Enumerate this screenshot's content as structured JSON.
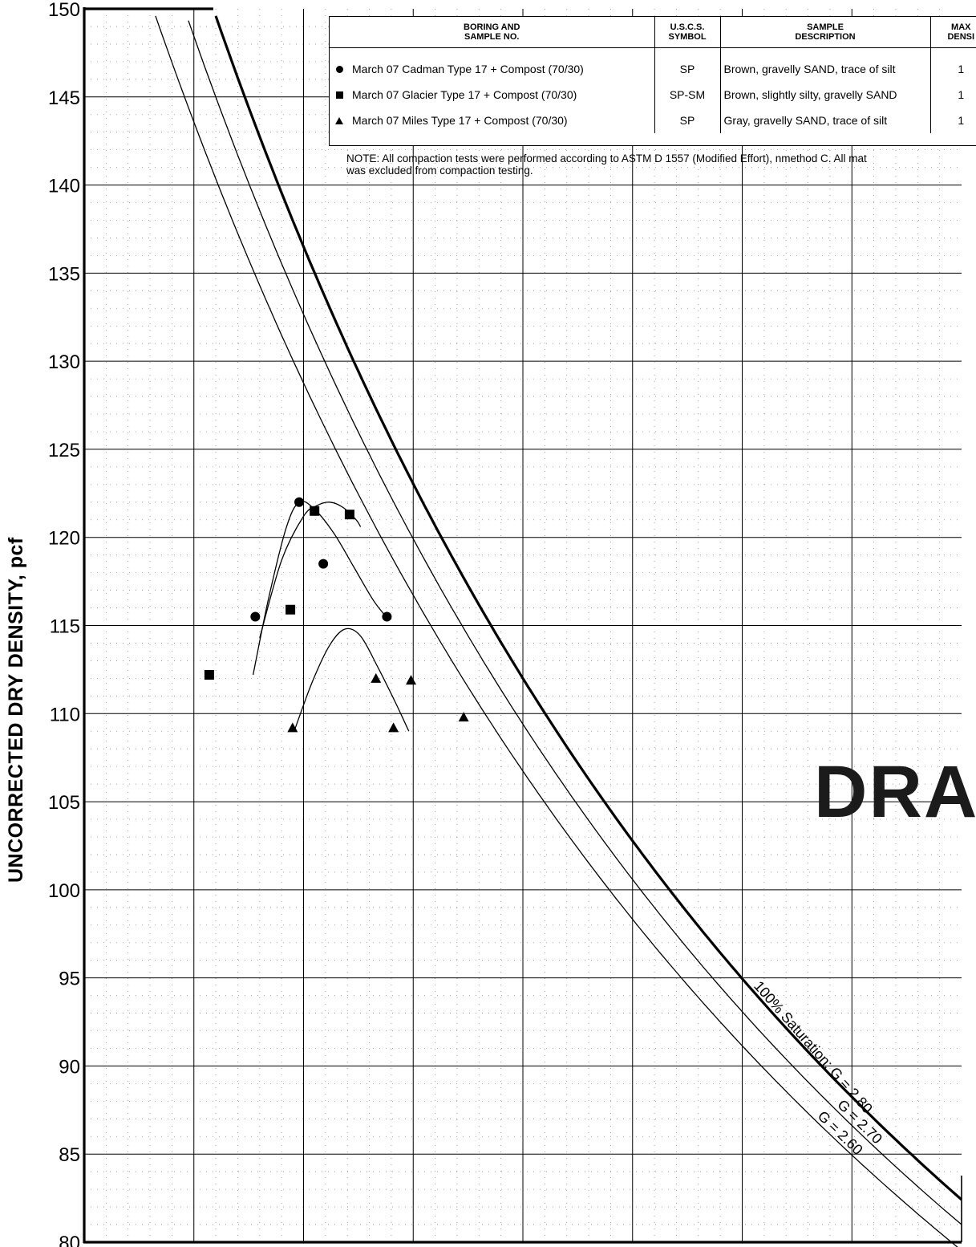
{
  "chart_data": {
    "type": "scatter",
    "xlabel": "",
    "ylabel": "UNCORRECTED DRY DENSITY, pcf",
    "xlim": [
      0,
      40
    ],
    "ylim": [
      80,
      150
    ],
    "x_ticks": [
      "0",
      "5",
      "10",
      "15",
      "20",
      "25",
      "30",
      "35",
      "40"
    ],
    "y_ticks": [
      "80",
      "85",
      "90",
      "95",
      "100",
      "105",
      "110",
      "115",
      "120",
      "125",
      "130",
      "135",
      "140",
      "145",
      "150"
    ],
    "grid": true,
    "series": [
      {
        "name": "March 07 Cadman Type 17 + Compost (70/30)",
        "marker": "circle",
        "points": [
          [
            7.8,
            115.5
          ],
          [
            9.8,
            122.0
          ],
          [
            10.9,
            118.5
          ],
          [
            13.8,
            115.5
          ]
        ],
        "curve": [
          [
            7.7,
            112.2
          ],
          [
            8.4,
            116.5
          ],
          [
            9.2,
            120.5
          ],
          [
            9.8,
            122.0
          ],
          [
            10.5,
            121.6
          ],
          [
            11.4,
            120.2
          ],
          [
            12.3,
            118.3
          ],
          [
            13.2,
            116.4
          ],
          [
            13.9,
            115.3
          ]
        ]
      },
      {
        "name": "March 07 Glacier Type 17 + Compost (70/30)",
        "marker": "square",
        "points": [
          [
            5.7,
            112.2
          ],
          [
            9.4,
            115.9
          ],
          [
            10.5,
            121.5
          ],
          [
            12.1,
            121.3
          ]
        ],
        "curve": [
          [
            8.0,
            114.3
          ],
          [
            9.0,
            118.7
          ],
          [
            10.0,
            121.2
          ],
          [
            10.6,
            121.8
          ],
          [
            11.2,
            122.0
          ],
          [
            11.8,
            121.7
          ],
          [
            12.4,
            121.0
          ],
          [
            12.6,
            120.6
          ]
        ]
      },
      {
        "name": "March 07 Miles Type 17 + Compost (70/30)",
        "marker": "triangle",
        "points": [
          [
            9.5,
            109.2
          ],
          [
            13.3,
            112.0
          ],
          [
            14.1,
            109.2
          ],
          [
            14.9,
            111.9
          ],
          [
            17.3,
            109.8
          ]
        ],
        "curve": [
          [
            9.6,
            109.1
          ],
          [
            10.4,
            111.8
          ],
          [
            11.2,
            113.9
          ],
          [
            11.9,
            114.8
          ],
          [
            12.6,
            114.4
          ],
          [
            13.4,
            112.6
          ],
          [
            14.2,
            110.6
          ],
          [
            14.8,
            109.0
          ]
        ]
      }
    ],
    "saturation_lines": [
      {
        "label": "100% Saturation: G = 2.80",
        "Gs": 2.8
      },
      {
        "label": "G = 2.70",
        "Gs": 2.7
      },
      {
        "label": "G = 2.60",
        "Gs": 2.6
      }
    ],
    "legend": {
      "position": "top-right",
      "headers": [
        "BORING AND\nSAMPLE NO.",
        "U.S.C.S.\nSYMBOL",
        "SAMPLE\nDESCRIPTION",
        "MAX\nDENSI"
      ],
      "rows": [
        {
          "marker": "circle",
          "name": "March 07 Cadman Type 17 + Compost (70/30)",
          "symbol": "SP",
          "description": "Brown, gravelly SAND, trace of silt",
          "max": "1"
        },
        {
          "marker": "square",
          "name": "March 07 Glacier Type 17 + Compost (70/30)",
          "symbol": "SP-SM",
          "description": "Brown, slightly silty, gravelly SAND",
          "max": "1"
        },
        {
          "marker": "triangle",
          "name": "March 07 Miles Type 17 + Compost (70/30)",
          "symbol": "SP",
          "description": "Gray, gravelly SAND, trace of silt",
          "max": "1"
        }
      ]
    },
    "note_line1": "NOTE:  All compaction tests were performed according to ASTM D 1557 (Modified Effort), nmethod C.  All mat",
    "note_line2": "was excluded from compaction testing.",
    "watermark": "DRAF"
  }
}
